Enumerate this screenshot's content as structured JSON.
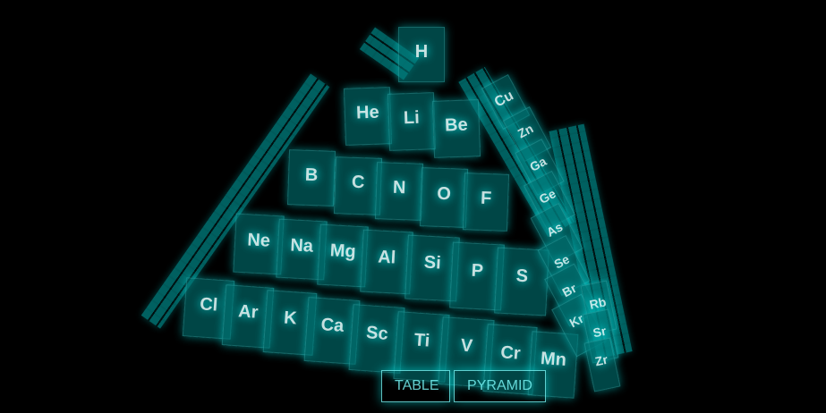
{
  "scene": {
    "elements": [
      {
        "symbol": "H"
      },
      {
        "symbol": "He"
      },
      {
        "symbol": "Li"
      },
      {
        "symbol": "Be"
      },
      {
        "symbol": "B"
      },
      {
        "symbol": "C"
      },
      {
        "symbol": "N"
      },
      {
        "symbol": "O"
      },
      {
        "symbol": "F"
      },
      {
        "symbol": "Ne"
      },
      {
        "symbol": "Na"
      },
      {
        "symbol": "Mg"
      },
      {
        "symbol": "Al"
      },
      {
        "symbol": "Si"
      },
      {
        "symbol": "P"
      },
      {
        "symbol": "S"
      },
      {
        "symbol": "Cl"
      },
      {
        "symbol": "Ar"
      },
      {
        "symbol": "K"
      },
      {
        "symbol": "Ca"
      },
      {
        "symbol": "Sc"
      },
      {
        "symbol": "Ti"
      },
      {
        "symbol": "V"
      },
      {
        "symbol": "Cr"
      },
      {
        "symbol": "Mn"
      },
      {
        "symbol": "Cu"
      },
      {
        "symbol": "Zn"
      },
      {
        "symbol": "Ga"
      },
      {
        "symbol": "Ge"
      },
      {
        "symbol": "As"
      },
      {
        "symbol": "Se"
      },
      {
        "symbol": "Br"
      },
      {
        "symbol": "Kr"
      },
      {
        "symbol": "Rb"
      },
      {
        "symbol": "Sr"
      },
      {
        "symbol": "Zr"
      }
    ]
  },
  "menu": {
    "table_label": "TABLE",
    "pyramid_label": "PYRAMID"
  }
}
